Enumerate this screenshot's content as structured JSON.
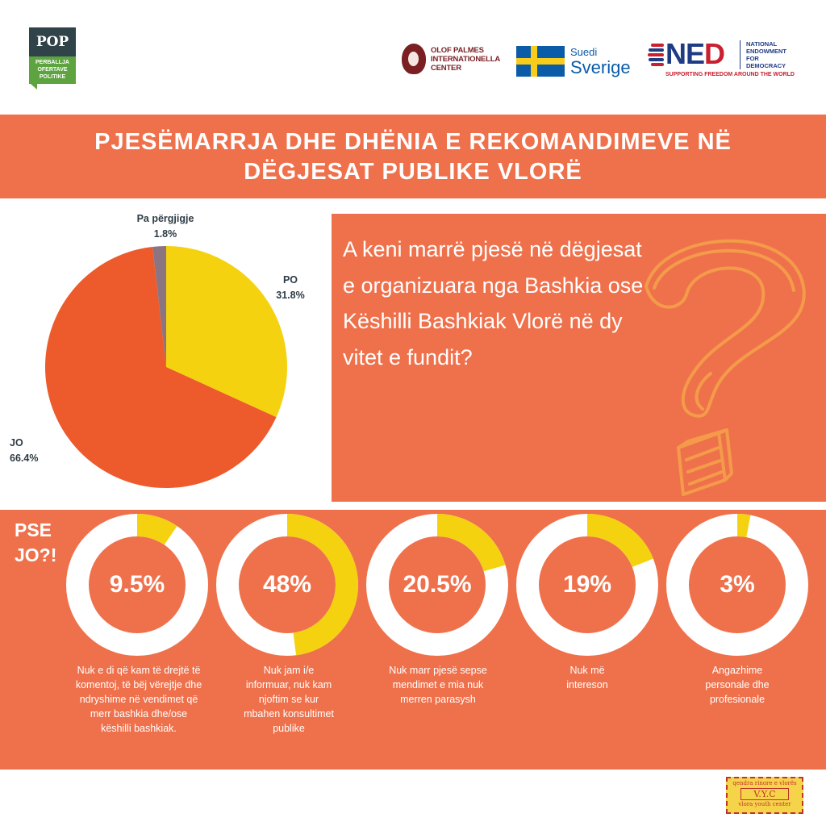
{
  "logos": {
    "pop": {
      "abbr": "POP",
      "line1": "PERBALLJA",
      "line2": "OFERTAVE",
      "line3": "POLITIKE"
    },
    "palme": {
      "line1": "OLOF PALMES",
      "line2": "INTERNATIONELLA",
      "line3": "CENTER"
    },
    "sweden": {
      "line1": "Suedi",
      "line2": "Sverige"
    },
    "ned": {
      "abbr_n": "N",
      "abbr_e": "E",
      "abbr_d": "D",
      "line1": "NATIONAL",
      "line2": "ENDOWMENT",
      "line3": "FOR",
      "line4": "DEMOCRACY",
      "tagline": "SUPPORTING FREEDOM AROUND THE WORLD"
    },
    "vyc": {
      "line1": "qendra rinore e vlorës",
      "line2": "V.Y.C",
      "line3": "vlora youth center"
    }
  },
  "title": {
    "line1": "PJESËMARRJA DHE DHËNIA E REKOMANDIMEVE NË",
    "line2": "DËGJESAT PUBLIKE VLORË"
  },
  "question": "A keni marrë pjesë në dëgjesat e organizuara nga Bashkia ose Këshilli Bashkiak Vlorë në dy vitet e fundit?",
  "why_label": "PSE JO?!",
  "colors": {
    "orange_band": "#ef714c",
    "pie_po": "#f5d20f",
    "pie_jo": "#ed5a2c",
    "pie_none": "#8c7480",
    "donut_fill": "#f5d20f",
    "donut_track": "#ffffff"
  },
  "chart_data": [
    {
      "type": "pie",
      "slices": [
        {
          "label": "PO",
          "value": 31.8,
          "display": "31.8%"
        },
        {
          "label": "JO",
          "value": 66.4,
          "display": "66.4%"
        },
        {
          "label": "Pa përgjigje",
          "value": 1.8,
          "display": "1.8%"
        }
      ]
    },
    {
      "type": "donut",
      "items": [
        {
          "value": 9.5,
          "display": "9.5%",
          "caption": "Nuk e di që kam të drejtë të komentoj, të bëj vërejtje dhe ndryshime në vendimet që merr bashkia dhe/ose këshilli bashkiak."
        },
        {
          "value": 48,
          "display": "48%",
          "caption": "Nuk jam i/e informuar, nuk kam njoftim se kur mbahen konsultimet publike"
        },
        {
          "value": 20.5,
          "display": "20.5%",
          "caption": "Nuk marr pjesë sepse mendimet e mia nuk merren parasysh"
        },
        {
          "value": 19,
          "display": "19%",
          "caption": "Nuk më intereson"
        },
        {
          "value": 3,
          "display": "3%",
          "caption": "Angazhime personale dhe profesionale"
        }
      ]
    }
  ]
}
